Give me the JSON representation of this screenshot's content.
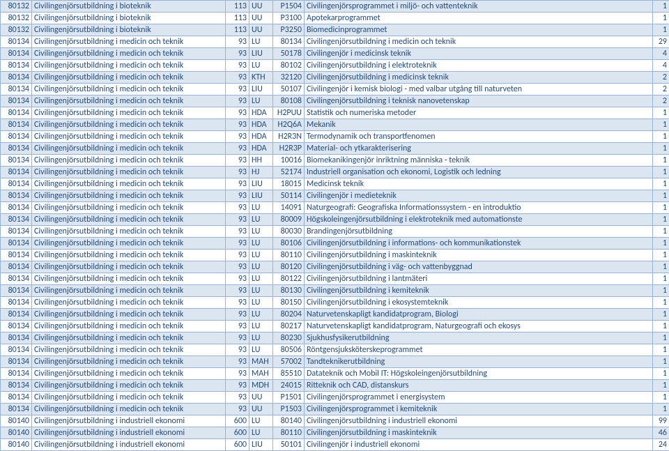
{
  "rows": [
    {
      "a": "80132",
      "b": "Civilingenjörsutbildning i bioteknik",
      "c": "113",
      "d": "UU",
      "e": "P1504",
      "f": "Civilingenjörsprogrammet i miljö- och vattenteknik",
      "g": "1"
    },
    {
      "a": "80132",
      "b": "Civilingenjörsutbildning i bioteknik",
      "c": "113",
      "d": "UU",
      "e": "P3100",
      "f": "Apotekarprogrammet",
      "g": "1"
    },
    {
      "a": "80132",
      "b": "Civilingenjörsutbildning i bioteknik",
      "c": "113",
      "d": "UU",
      "e": "P3250",
      "f": "Biomedicinprogrammet",
      "g": "1"
    },
    {
      "a": "80134",
      "b": "Civilingenjörsutbildning i medicin och teknik",
      "c": "93",
      "d": "LU",
      "e": "80134",
      "f": "Civilingenjörsutbildning i medicin och teknik",
      "g": "29"
    },
    {
      "a": "80134",
      "b": "Civilingenjörsutbildning i medicin och teknik",
      "c": "93",
      "d": "LIU",
      "e": "50178",
      "f": "Civilingenjör i medicinsk teknik",
      "g": "4"
    },
    {
      "a": "80134",
      "b": "Civilingenjörsutbildning i medicin och teknik",
      "c": "93",
      "d": "LU",
      "e": "80102",
      "f": "Civilingenjörsutbildning i elektroteknik",
      "g": "4"
    },
    {
      "a": "80134",
      "b": "Civilingenjörsutbildning i medicin och teknik",
      "c": "93",
      "d": "KTH",
      "e": "32120",
      "f": "Civilingenjörsutbildning i medicinsk teknik",
      "g": "2"
    },
    {
      "a": "80134",
      "b": "Civilingenjörsutbildning i medicin och teknik",
      "c": "93",
      "d": "LIU",
      "e": "50107",
      "f": "Civilingenjör i kemisk biologi - med valbar utgång till naturveten",
      "g": "2"
    },
    {
      "a": "80134",
      "b": "Civilingenjörsutbildning i medicin och teknik",
      "c": "93",
      "d": "LU",
      "e": "80108",
      "f": "Civilingenjörsutbildning i teknisk nanovetenskap",
      "g": "2"
    },
    {
      "a": "80134",
      "b": "Civilingenjörsutbildning i medicin och teknik",
      "c": "93",
      "d": "HDA",
      "e": "H2PUU",
      "f": "Statistik och numeriska metoder",
      "g": "1"
    },
    {
      "a": "80134",
      "b": "Civilingenjörsutbildning i medicin och teknik",
      "c": "93",
      "d": "HDA",
      "e": "H2Q6A",
      "f": "Mekanik",
      "g": "1"
    },
    {
      "a": "80134",
      "b": "Civilingenjörsutbildning i medicin och teknik",
      "c": "93",
      "d": "HDA",
      "e": "H2R3N",
      "f": "Termodynamik och transportfenomen",
      "g": "1"
    },
    {
      "a": "80134",
      "b": "Civilingenjörsutbildning i medicin och teknik",
      "c": "93",
      "d": "HDA",
      "e": "H2R3P",
      "f": "Material- och ytkarakterisering",
      "g": "1"
    },
    {
      "a": "80134",
      "b": "Civilingenjörsutbildning i medicin och teknik",
      "c": "93",
      "d": "HH",
      "e": "10016",
      "f": "Biomekanikingenjör inriktning människa - teknik",
      "g": "1"
    },
    {
      "a": "80134",
      "b": "Civilingenjörsutbildning i medicin och teknik",
      "c": "93",
      "d": "HJ",
      "e": "52174",
      "f": "Industriell organisation och ekonomi, Logistik och ledning",
      "g": "1"
    },
    {
      "a": "80134",
      "b": "Civilingenjörsutbildning i medicin och teknik",
      "c": "93",
      "d": "LIU",
      "e": "18015",
      "f": "Medicinsk teknik",
      "g": "1"
    },
    {
      "a": "80134",
      "b": "Civilingenjörsutbildning i medicin och teknik",
      "c": "93",
      "d": "LIU",
      "e": "50114",
      "f": "Civilingenjör i medieteknik",
      "g": "1"
    },
    {
      "a": "80134",
      "b": "Civilingenjörsutbildning i medicin och teknik",
      "c": "93",
      "d": "LU",
      "e": "14091",
      "f": "Naturgeografi: Geografiska Informationssystem - en introduktio",
      "g": "1"
    },
    {
      "a": "80134",
      "b": "Civilingenjörsutbildning i medicin och teknik",
      "c": "93",
      "d": "LU",
      "e": "80009",
      "f": "Högskoleingenjörsutbildning i elektroteknik med automationste",
      "g": "1"
    },
    {
      "a": "80134",
      "b": "Civilingenjörsutbildning i medicin och teknik",
      "c": "93",
      "d": "LU",
      "e": "80030",
      "f": "Brandingenjörsutbildning",
      "g": "1"
    },
    {
      "a": "80134",
      "b": "Civilingenjörsutbildning i medicin och teknik",
      "c": "93",
      "d": "LU",
      "e": "80106",
      "f": "Civilingenjörsutbildning i informations- och kommunikationstek",
      "g": "1"
    },
    {
      "a": "80134",
      "b": "Civilingenjörsutbildning i medicin och teknik",
      "c": "93",
      "d": "LU",
      "e": "80110",
      "f": "Civilingenjörsutbildning i maskinteknik",
      "g": "1"
    },
    {
      "a": "80134",
      "b": "Civilingenjörsutbildning i medicin och teknik",
      "c": "93",
      "d": "LU",
      "e": "80120",
      "f": "Civilingenjörsutbildning i väg- och vattenbyggnad",
      "g": "1"
    },
    {
      "a": "80134",
      "b": "Civilingenjörsutbildning i medicin och teknik",
      "c": "93",
      "d": "LU",
      "e": "80122",
      "f": "Civilingenjörsutbildning i lantmäteri",
      "g": "1"
    },
    {
      "a": "80134",
      "b": "Civilingenjörsutbildning i medicin och teknik",
      "c": "93",
      "d": "LU",
      "e": "80130",
      "f": "Civilingenjörsutbildning i kemiteknik",
      "g": "1"
    },
    {
      "a": "80134",
      "b": "Civilingenjörsutbildning i medicin och teknik",
      "c": "93",
      "d": "LU",
      "e": "80150",
      "f": "Civilingenjörsutbildning i ekosystemteknik",
      "g": "1"
    },
    {
      "a": "80134",
      "b": "Civilingenjörsutbildning i medicin och teknik",
      "c": "93",
      "d": "LU",
      "e": "80204",
      "f": "Naturvetenskapligt kandidatprogram, Biologi",
      "g": "1"
    },
    {
      "a": "80134",
      "b": "Civilingenjörsutbildning i medicin och teknik",
      "c": "93",
      "d": "LU",
      "e": "80217",
      "f": "Naturvetenskapligt kandidatprogram, Naturgeografi och ekosys",
      "g": "1"
    },
    {
      "a": "80134",
      "b": "Civilingenjörsutbildning i medicin och teknik",
      "c": "93",
      "d": "LU",
      "e": "80230",
      "f": "Sjukhusfysikerutbildning",
      "g": "1"
    },
    {
      "a": "80134",
      "b": "Civilingenjörsutbildning i medicin och teknik",
      "c": "93",
      "d": "LU",
      "e": "80506",
      "f": "Röntgensjuksköterskeprogrammet",
      "g": "1"
    },
    {
      "a": "80134",
      "b": "Civilingenjörsutbildning i medicin och teknik",
      "c": "93",
      "d": "MAH",
      "e": "57002",
      "f": "Tandteknikerutbildning",
      "g": "1"
    },
    {
      "a": "80134",
      "b": "Civilingenjörsutbildning i medicin och teknik",
      "c": "93",
      "d": "MAH",
      "e": "85510",
      "f": "Datateknik och Mobil IT: Högskoleingenjörsutbildning",
      "g": "1"
    },
    {
      "a": "80134",
      "b": "Civilingenjörsutbildning i medicin och teknik",
      "c": "93",
      "d": "MDH",
      "e": "24015",
      "f": "Ritteknik och CAD, distanskurs",
      "g": "1"
    },
    {
      "a": "80134",
      "b": "Civilingenjörsutbildning i medicin och teknik",
      "c": "93",
      "d": "UU",
      "e": "P1501",
      "f": "Civilingenjörsprogrammet i energisystem",
      "g": "1"
    },
    {
      "a": "80134",
      "b": "Civilingenjörsutbildning i medicin och teknik",
      "c": "93",
      "d": "UU",
      "e": "P1503",
      "f": "Civilingenjörsprogrammet i kemiteknik",
      "g": "1"
    },
    {
      "a": "80140",
      "b": "Civilingenjörsutbildning i industriell ekonomi",
      "c": "600",
      "d": "LU",
      "e": "80140",
      "f": "Civilingenjörsutbildning i industriell ekonomi",
      "g": "99"
    },
    {
      "a": "80140",
      "b": "Civilingenjörsutbildning i industriell ekonomi",
      "c": "600",
      "d": "LU",
      "e": "80110",
      "f": "Civilingenjörsutbildning i maskinteknik",
      "g": "46"
    },
    {
      "a": "80140",
      "b": "Civilingenjörsutbildning i industriell ekonomi",
      "c": "600",
      "d": "LIU",
      "e": "50101",
      "f": "Civilingenjör i industriell ekonomi",
      "g": "24"
    }
  ]
}
